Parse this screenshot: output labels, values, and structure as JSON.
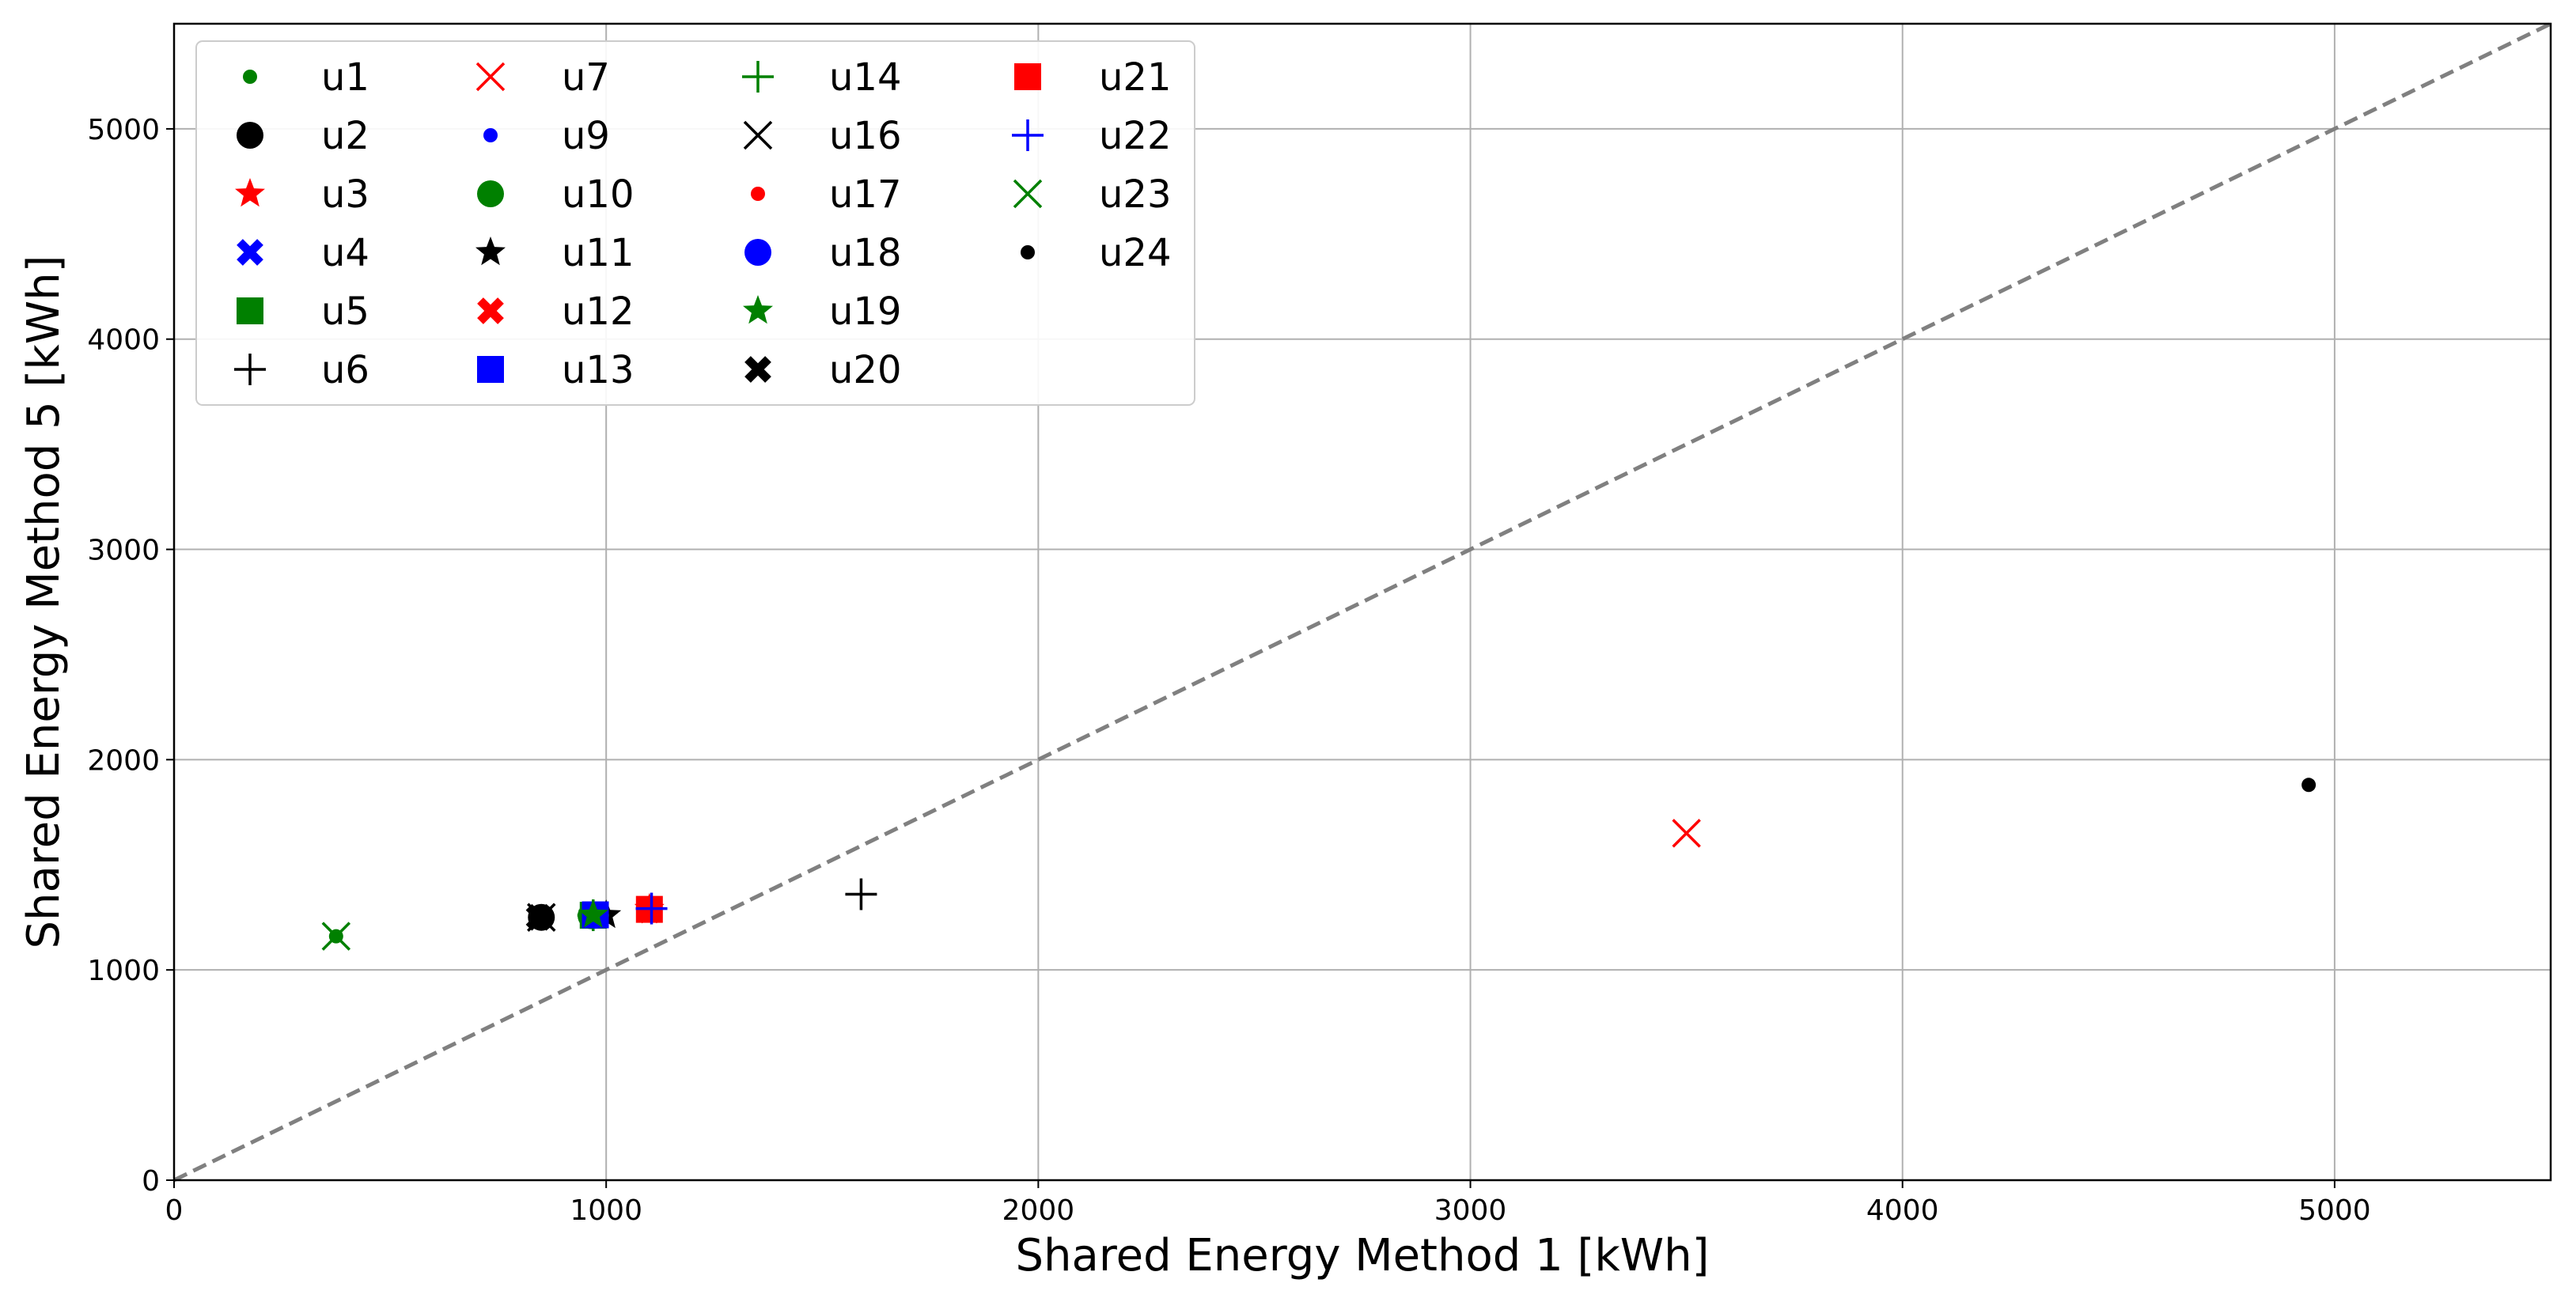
{
  "chart_data": {
    "type": "scatter",
    "title": "",
    "xlabel": "Shared Energy Method 1   [kWh]",
    "ylabel": "Shared Energy Method 5   [kWh]",
    "xlim": [
      0,
      5500
    ],
    "ylim": [
      0,
      5500
    ],
    "xticks": [
      0,
      1000,
      2000,
      3000,
      4000,
      5000
    ],
    "yticks": [
      0,
      1000,
      2000,
      3000,
      4000,
      5000
    ],
    "grid": true,
    "legend_position": "top-left",
    "legend_columns": 4,
    "reference_line": {
      "style": "dashed",
      "color": "#808080",
      "from": [
        0,
        0
      ],
      "to": [
        5500,
        5500
      ]
    },
    "series": [
      {
        "name": "u1",
        "marker": "point",
        "color": "#008000",
        "x": 375,
        "y": 1160
      },
      {
        "name": "u2",
        "marker": "circle",
        "color": "#000000",
        "x": 850,
        "y": 1250
      },
      {
        "name": "u3",
        "marker": "star",
        "color": "#ff0000",
        "x": 1100,
        "y": 1290
      },
      {
        "name": "u4",
        "marker": "X",
        "color": "#0000ff",
        "x": 975,
        "y": 1260
      },
      {
        "name": "u5",
        "marker": "square",
        "color": "#008000",
        "x": 970,
        "y": 1260
      },
      {
        "name": "u6",
        "marker": "plus",
        "color": "#000000",
        "x": 1590,
        "y": 1360
      },
      {
        "name": "u7",
        "marker": "x",
        "color": "#ff0000",
        "x": 3500,
        "y": 1650
      },
      {
        "name": "u9",
        "marker": "point",
        "color": "#0000ff",
        "x": 980,
        "y": 1265
      },
      {
        "name": "u10",
        "marker": "circle",
        "color": "#008000",
        "x": 965,
        "y": 1258
      },
      {
        "name": "u11",
        "marker": "star",
        "color": "#000000",
        "x": 1000,
        "y": 1260
      },
      {
        "name": "u12",
        "marker": "X",
        "color": "#ff0000",
        "x": 1100,
        "y": 1285
      },
      {
        "name": "u13",
        "marker": "square",
        "color": "#0000ff",
        "x": 975,
        "y": 1262
      },
      {
        "name": "u14",
        "marker": "plus",
        "color": "#008000",
        "x": 970,
        "y": 1260
      },
      {
        "name": "u16",
        "marker": "x",
        "color": "#000000",
        "x": 850,
        "y": 1250
      },
      {
        "name": "u17",
        "marker": "point",
        "color": "#ff0000",
        "x": 1100,
        "y": 1290
      },
      {
        "name": "u18",
        "marker": "circle",
        "color": "#0000ff",
        "x": 975,
        "y": 1260
      },
      {
        "name": "u19",
        "marker": "star",
        "color": "#008000",
        "x": 970,
        "y": 1262
      },
      {
        "name": "u20",
        "marker": "X",
        "color": "#000000",
        "x": 845,
        "y": 1250
      },
      {
        "name": "u21",
        "marker": "square",
        "color": "#ff0000",
        "x": 1100,
        "y": 1288
      },
      {
        "name": "u22",
        "marker": "plus",
        "color": "#0000ff",
        "x": 1105,
        "y": 1292
      },
      {
        "name": "u23",
        "marker": "x",
        "color": "#008000",
        "x": 375,
        "y": 1160
      },
      {
        "name": "u24",
        "marker": "point",
        "color": "#000000",
        "x": 4940,
        "y": 1880
      }
    ]
  }
}
